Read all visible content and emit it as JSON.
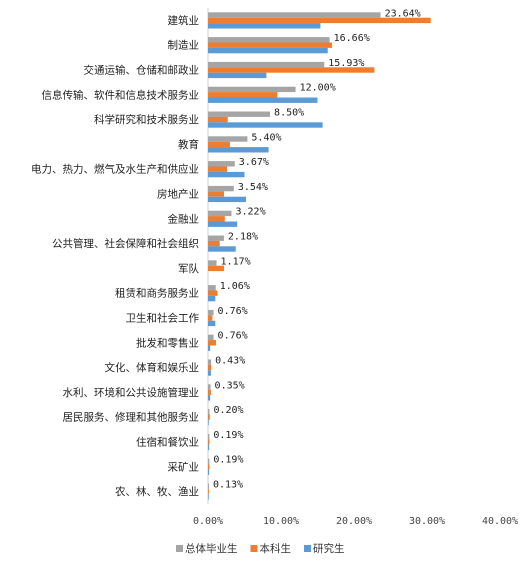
{
  "chart_data": {
    "type": "bar",
    "orientation": "horizontal",
    "categories": [
      "建筑业",
      "制造业",
      "交通运输、仓储和邮政业",
      "信息传输、软件和信息技术服务业",
      "科学研究和技术服务业",
      "教育",
      "电力、热力、燃气及水生产和供应业",
      "房地产业",
      "金融业",
      "公共管理、社会保障和社会组织",
      "军队",
      "租赁和商务服务业",
      "卫生和社会工作",
      "批发和零售业",
      "文化、体育和娱乐业",
      "水利、环境和公共设施管理业",
      "居民服务、修理和其他服务业",
      "住宿和餐饮业",
      "采矿业",
      "农、林、牧、渔业"
    ],
    "series": [
      {
        "name": "总体毕业生",
        "color": "#a5a5a5",
        "values": [
          23.64,
          16.66,
          15.93,
          12.0,
          8.5,
          5.4,
          3.67,
          3.54,
          3.22,
          2.18,
          1.17,
          1.06,
          0.76,
          0.76,
          0.43,
          0.35,
          0.2,
          0.19,
          0.19,
          0.13
        ]
      },
      {
        "name": "本科生",
        "color": "#ed7d31",
        "values": [
          30.5,
          17.0,
          22.8,
          9.5,
          2.7,
          3.0,
          2.6,
          2.2,
          2.3,
          1.6,
          2.2,
          1.3,
          0.6,
          1.1,
          0.45,
          0.4,
          0.25,
          0.2,
          0.2,
          0.12
        ]
      },
      {
        "name": "研究生",
        "color": "#5b9bd5",
        "values": [
          15.4,
          16.4,
          8.0,
          15.0,
          15.7,
          8.3,
          5.0,
          5.2,
          4.0,
          3.8,
          0.0,
          1.0,
          1.0,
          0.3,
          0.4,
          0.3,
          0.1,
          0.15,
          0.15,
          0.1
        ]
      }
    ],
    "data_labels": [
      "23.64%",
      "16.66%",
      "15.93%",
      "12.00%",
      "8.50%",
      "5.40%",
      "3.67%",
      "3.54%",
      "3.22%",
      "2.18%",
      "1.17%",
      "1.06%",
      "0.76%",
      "0.76%",
      "0.43%",
      "0.35%",
      "0.20%",
      "0.19%",
      "0.19%",
      "0.13%"
    ],
    "xlim": [
      0,
      40
    ],
    "xticks": [
      "0.00%",
      "10.00%",
      "20.00%",
      "30.00%",
      "40.00%"
    ],
    "grid": false,
    "legend_position": "bottom"
  }
}
